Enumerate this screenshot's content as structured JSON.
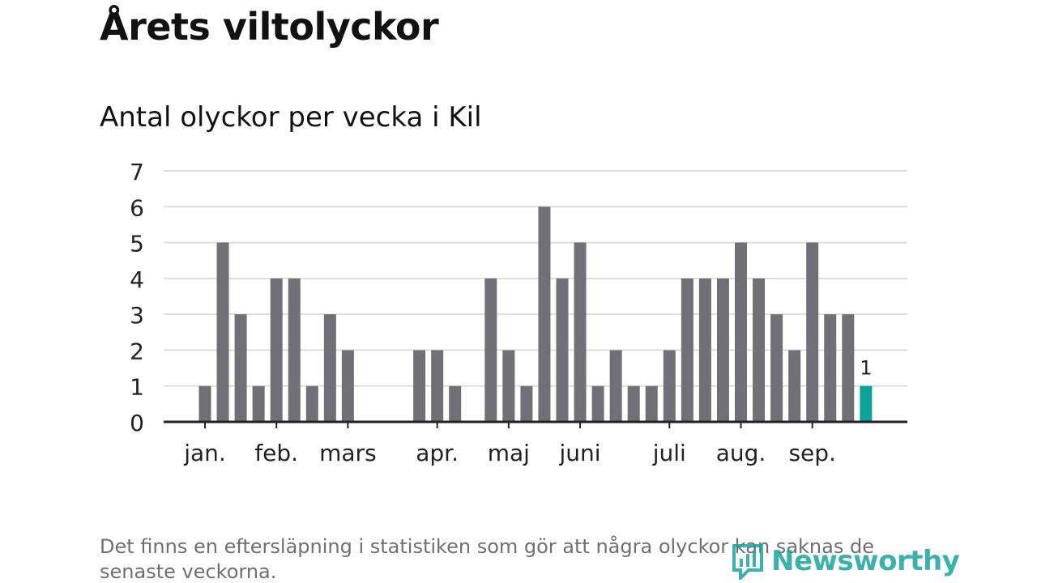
{
  "title": "Årets viltolyckor",
  "subtitle": "Antal olyckor per vecka i Kil",
  "footnote": "Det finns en eftersläpning i statistiken som gör att några olyckor kan saknas de senaste veckorna.",
  "logo": {
    "text": "Newsworthy",
    "icon": "bar-chart-logo-icon"
  },
  "colors": {
    "bar": "#717077",
    "highlight": "#0ba39a",
    "grid": "#dddddd",
    "axis": "#222222",
    "text": "#222222"
  },
  "chart_data": {
    "type": "bar",
    "title": "Antal olyckor per vecka i Kil",
    "xlabel": "",
    "ylabel": "",
    "ylim": [
      0,
      7
    ],
    "yticks": [
      0,
      1,
      2,
      3,
      4,
      5,
      6,
      7
    ],
    "grid": true,
    "legend": "none",
    "week_start": 1,
    "values": [
      1,
      5,
      3,
      1,
      4,
      4,
      1,
      3,
      2,
      0,
      0,
      0,
      2,
      2,
      1,
      0,
      4,
      2,
      1,
      6,
      4,
      5,
      1,
      2,
      1,
      1,
      2,
      4,
      4,
      4,
      5,
      4,
      3,
      2,
      5,
      3,
      3,
      1
    ],
    "highlight_last": true,
    "last_value_label": "1",
    "month_labels": [
      {
        "label": "jan.",
        "week": 1
      },
      {
        "label": "feb.",
        "week": 5
      },
      {
        "label": "mars",
        "week": 9
      },
      {
        "label": "apr.",
        "week": 14
      },
      {
        "label": "maj",
        "week": 18
      },
      {
        "label": "juni",
        "week": 22
      },
      {
        "label": "juli",
        "week": 27
      },
      {
        "label": "aug.",
        "week": 31
      },
      {
        "label": "sep.",
        "week": 35
      }
    ]
  }
}
